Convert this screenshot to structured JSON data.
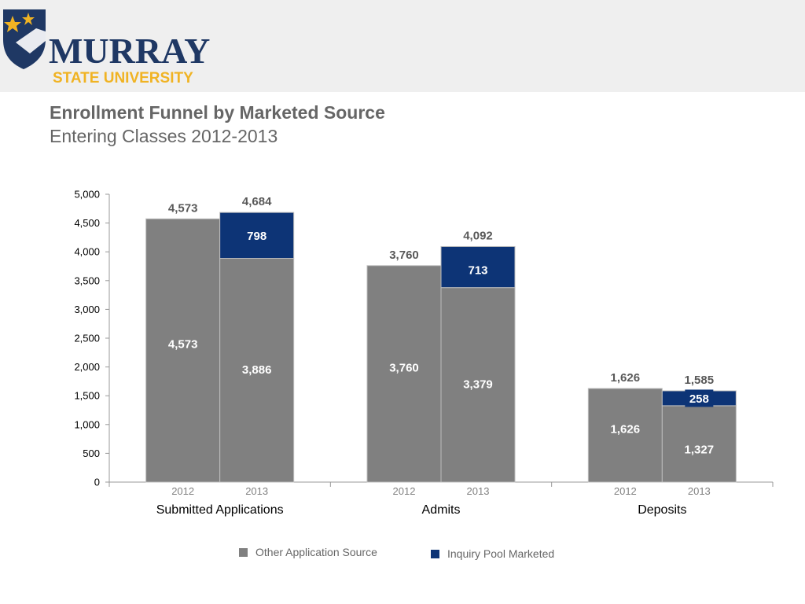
{
  "header": {
    "logo_main": "MURRAY",
    "logo_sub": "STATE UNIVERSITY",
    "title": "Enrollment Funnel by Marketed Source",
    "subtitle": "Entering Classes 2012-2013"
  },
  "colors": {
    "other": "#808080",
    "inquiry": "#0d3476",
    "header_band": "#efefef",
    "logo_navy": "#1f3864",
    "logo_gold": "#f0b323"
  },
  "chart_data": {
    "type": "bar",
    "stacked": true,
    "groups": [
      {
        "label": "Submitted Applications",
        "bars": [
          {
            "year": "2012",
            "other": 4573,
            "inquiry": 0,
            "total": 4573
          },
          {
            "year": "2013",
            "other": 3886,
            "inquiry": 798,
            "total": 4684
          }
        ]
      },
      {
        "label": "Admits",
        "bars": [
          {
            "year": "2012",
            "other": 3760,
            "inquiry": 0,
            "total": 3760
          },
          {
            "year": "2013",
            "other": 3379,
            "inquiry": 713,
            "total": 4092
          }
        ]
      },
      {
        "label": "Deposits",
        "bars": [
          {
            "year": "2012",
            "other": 1626,
            "inquiry": 0,
            "total": 1626
          },
          {
            "year": "2013",
            "other": 1327,
            "inquiry": 258,
            "total": 1585
          }
        ]
      }
    ],
    "series": [
      {
        "name": "Other Application Source",
        "key": "other"
      },
      {
        "name": "Inquiry Pool Marketed",
        "key": "inquiry"
      }
    ],
    "ylim": [
      0,
      5000
    ],
    "yticks": [
      "0",
      "500",
      "1,000",
      "1,500",
      "2,000",
      "2,500",
      "3,000",
      "3,500",
      "4,000",
      "4,500",
      "5,000"
    ],
    "ytick_values": [
      0,
      500,
      1000,
      1500,
      2000,
      2500,
      3000,
      3500,
      4000,
      4500,
      5000
    ],
    "grid": false,
    "legend_position": "bottom"
  }
}
